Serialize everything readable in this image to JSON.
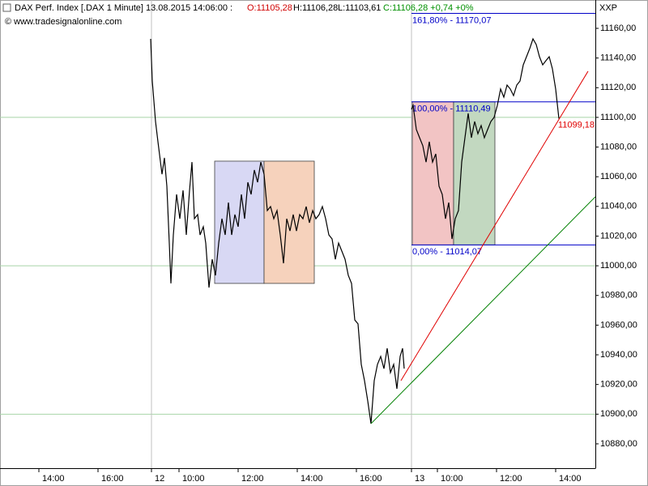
{
  "header": {
    "title": "DAX Perf. Index [.DAX  1 Minute] 13.08.2015 14:06:00 :",
    "open": "O:11105,28",
    "high": "H:11106,28",
    "low": "L:11103,61",
    "close": "C:11106,28 +0,74 +0%",
    "copyright": "© www.tradesignalonline.com",
    "axis_label": "XXP"
  },
  "chart_data": {
    "type": "line",
    "color": "#000000",
    "x": [
      186,
      188,
      192,
      195,
      200,
      203,
      206,
      209,
      211,
      214,
      218,
      222,
      226,
      230,
      234,
      237,
      240,
      244,
      247,
      251,
      254,
      258,
      262,
      266,
      270,
      274,
      278,
      282,
      286,
      290,
      294,
      298,
      302,
      306,
      310,
      314,
      318,
      322,
      326,
      330,
      334,
      338,
      342,
      346,
      350,
      354,
      358,
      362,
      366,
      370,
      374,
      378,
      382,
      386,
      390,
      394,
      398,
      402,
      406,
      410,
      414,
      418,
      422,
      426,
      430,
      434,
      438,
      442,
      446,
      450,
      454,
      458,
      462,
      466,
      470,
      474,
      478,
      482,
      486,
      490,
      494,
      497,
      499,
      503,
      508,
      510,
      514,
      518,
      522,
      526,
      530,
      534,
      538,
      542,
      546,
      550,
      554,
      558,
      562,
      566,
      570,
      574,
      578,
      582,
      586,
      590,
      594,
      598,
      602,
      606,
      610,
      614,
      618,
      622,
      626,
      630,
      634,
      638,
      642,
      646,
      650,
      654,
      658,
      662,
      666,
      670,
      674,
      678,
      682,
      686,
      690
    ],
    "values": [
      11152.9,
      11124.5,
      11097.2,
      11083.6,
      11061.7,
      11072.7,
      11053.6,
      11015.3,
      10988.1,
      11020.8,
      11048.1,
      11031.7,
      11050.8,
      11020.8,
      11050.8,
      11069.9,
      11031.7,
      11034.5,
      11020.8,
      11026.3,
      11015.3,
      10985.3,
      11004.4,
      10993.5,
      11015.3,
      11031.7,
      11020.8,
      11042.6,
      11020.8,
      11034.5,
      11026.3,
      11048.1,
      11031.7,
      11056.3,
      11048.1,
      11064.5,
      11056.3,
      11069.9,
      11061.7,
      11037.2,
      11039.9,
      11031.7,
      11037.2,
      11020.8,
      11001.7,
      11031.7,
      11023.5,
      11034.5,
      11023.5,
      11034.5,
      11031.7,
      11039.9,
      11029.0,
      11037.2,
      11031.7,
      11034.5,
      11039.9,
      11031.7,
      11020.8,
      11018.1,
      11004.4,
      11015.3,
      11009.9,
      11004.4,
      10993.5,
      10988.1,
      10963.5,
      10960.8,
      10933.5,
      10922.6,
      10908.9,
      10893.6,
      10922.6,
      10933.5,
      10938.9,
      10930.7,
      10944.4,
      10928.0,
      10933.5,
      10917.1,
      10938.9,
      10944.4,
      10930.7,
      null,
      11105.4,
      11108.1,
      11091.8,
      11086.3,
      11080.9,
      11069.9,
      11083.6,
      11069.9,
      11075.4,
      11053.6,
      11048.1,
      11031.7,
      11042.6,
      11018.1,
      11031.7,
      11037.2,
      11069.9,
      11086.3,
      11102.7,
      11086.3,
      11097.2,
      11089.0,
      11094.5,
      11086.3,
      11091.8,
      11097.2,
      11100.0,
      11108.1,
      11119.1,
      11113.6,
      11121.8,
      11119.1,
      11114.7,
      11121.8,
      11124.5,
      11135.4,
      11140.9,
      11146.4,
      11152.9,
      11149.1,
      11140.9,
      11135.4,
      11138.2,
      11140.9,
      11132.7,
      11119.1,
      11099.2
    ],
    "xlim": [
      0,
      735
    ],
    "ylim": [
      10863.6,
      11179.1
    ],
    "xticks": [
      {
        "value": 48,
        "label": "14:00"
      },
      {
        "value": 121,
        "label": "16:00"
      },
      {
        "value": 187,
        "label": "12"
      },
      {
        "value": 221,
        "label": "10:00"
      },
      {
        "value": 294,
        "label": "12:00"
      },
      {
        "value": 367,
        "label": "14:00"
      },
      {
        "value": 440,
        "label": "16:00"
      },
      {
        "value": 508,
        "label": "13"
      },
      {
        "value": 540,
        "label": "10:00"
      },
      {
        "value": 613,
        "label": "12:00"
      },
      {
        "value": 686,
        "label": "14:00"
      }
    ],
    "yticks": [
      {
        "value": 10880,
        "label": "10880,00"
      },
      {
        "value": 10900,
        "label": "10900,00"
      },
      {
        "value": 10920,
        "label": "10920,00"
      },
      {
        "value": 10940,
        "label": "10940,00"
      },
      {
        "value": 10960,
        "label": "10960,00"
      },
      {
        "value": 10980,
        "label": "10980,00"
      },
      {
        "value": 11000,
        "label": "11000,00"
      },
      {
        "value": 11020,
        "label": "11020,00"
      },
      {
        "value": 11040,
        "label": "11040,00"
      },
      {
        "value": 11060,
        "label": "11060,00"
      },
      {
        "value": 11080,
        "label": "11080,00"
      },
      {
        "value": 11100,
        "label": "11100,00"
      },
      {
        "value": 11120,
        "label": "11120,00"
      },
      {
        "value": 11140,
        "label": "11140,00"
      },
      {
        "value": 11160,
        "label": "11160,00"
      }
    ],
    "grid_lines": [
      10900,
      11000,
      11100
    ],
    "grid_color": "#a8d4a8",
    "day_lines": [
      187,
      508
    ],
    "day_line_color": "#c0c0c0",
    "boxes": [
      {
        "x": [
          265,
          326
        ],
        "values": [
          11070.5,
          10988.1
        ],
        "color": "#d8d8f4"
      },
      {
        "x": [
          326,
          388
        ],
        "values": [
          11070.5,
          10988.1
        ],
        "color": "#f6d2bc"
      },
      {
        "x": [
          509,
          560
        ],
        "values": [
          11110.49,
          11014.07
        ],
        "color": "#f2c4c4"
      },
      {
        "x": [
          560,
          611
        ],
        "values": [
          11110.49,
          11014.07
        ],
        "color": "#c2d8c0"
      }
    ],
    "fib_start": 508,
    "fib_color": "#0000c8",
    "fib_levels": [
      {
        "value": 11170.07,
        "label": "161,80% - 11170,07"
      },
      {
        "value": 11110.49,
        "label": "100,00% - 11110,49"
      },
      {
        "value": 11014.07,
        "label": "0,00% - 11014,07"
      }
    ],
    "trend_lines": [
      {
        "x": [
          495,
          726
        ],
        "values": [
          10922.6,
          11131.1
        ],
        "color": "#e00000"
      },
      {
        "x": [
          458,
          735
        ],
        "values": [
          10893.6,
          11046.5
        ],
        "color": "#008000"
      }
    ],
    "last_price": {
      "value": 11099.18,
      "label": "11099,18",
      "color": "#e00000"
    }
  }
}
